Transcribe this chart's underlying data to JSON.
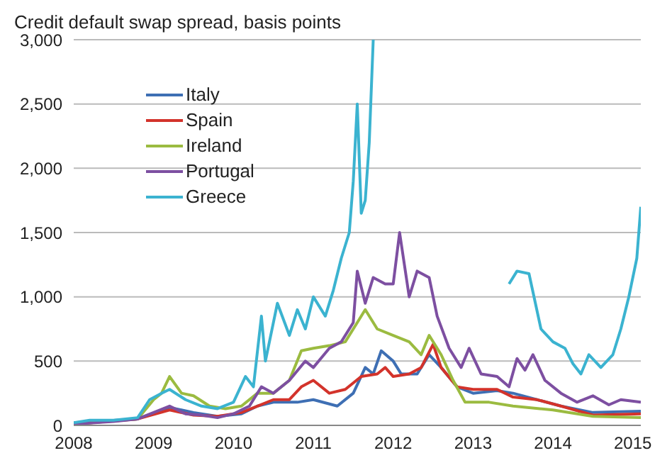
{
  "chart_data": {
    "type": "line",
    "title": "Credit default swap spread, basis points",
    "xlim": [
      2008,
      2015.1
    ],
    "xticks": [
      2008,
      2009,
      2010,
      2011,
      2012,
      2013,
      2014,
      2015
    ],
    "ylim": [
      0,
      3000
    ],
    "yticks": [
      {
        "value": 0,
        "label": "0"
      },
      {
        "value": 500,
        "label": "500"
      },
      {
        "value": 1000,
        "label": "1,000"
      },
      {
        "value": 1500,
        "label": "1,500"
      },
      {
        "value": 2000,
        "label": "2,000"
      },
      {
        "value": 2500,
        "label": "2,500"
      },
      {
        "value": 3000,
        "label": "3,000"
      }
    ],
    "grid": "y",
    "legend": "top left",
    "marker": "none",
    "line_style": "solid",
    "series": [
      {
        "name": "Italy",
        "color": "#3e6fb4",
        "x": [
          2008,
          2008.8,
          2009.2,
          2009.5,
          2009.8,
          2010.1,
          2010.3,
          2010.5,
          2010.8,
          2011.0,
          2011.3,
          2011.5,
          2011.65,
          2011.75,
          2011.85,
          2012.0,
          2012.1,
          2012.3,
          2012.45,
          2012.6,
          2012.8,
          2013.0,
          2013.3,
          2013.5,
          2013.8,
          2014.1,
          2014.5,
          2015.1
        ],
        "values": [
          20,
          50,
          140,
          100,
          70,
          90,
          150,
          180,
          180,
          200,
          150,
          250,
          450,
          400,
          580,
          500,
          400,
          400,
          550,
          450,
          300,
          250,
          270,
          250,
          200,
          150,
          100,
          110
        ]
      },
      {
        "name": "Spain",
        "color": "#d3332b",
        "x": [
          2008,
          2008.8,
          2009.2,
          2009.5,
          2009.8,
          2010.1,
          2010.3,
          2010.5,
          2010.7,
          2010.85,
          2011.0,
          2011.2,
          2011.4,
          2011.6,
          2011.8,
          2011.9,
          2012.0,
          2012.2,
          2012.35,
          2012.5,
          2012.6,
          2012.8,
          2013.0,
          2013.3,
          2013.5,
          2013.8,
          2014.1,
          2014.5,
          2015.1
        ],
        "values": [
          10,
          50,
          120,
          80,
          70,
          100,
          150,
          200,
          200,
          300,
          350,
          250,
          280,
          380,
          400,
          450,
          380,
          400,
          450,
          630,
          450,
          300,
          280,
          280,
          220,
          200,
          150,
          80,
          90
        ]
      },
      {
        "name": "Ireland",
        "color": "#9bbb40",
        "x": [
          2008,
          2008.8,
          2009.0,
          2009.1,
          2009.2,
          2009.35,
          2009.5,
          2009.7,
          2009.9,
          2010.1,
          2010.3,
          2010.5,
          2010.7,
          2010.85,
          2011.0,
          2011.2,
          2011.4,
          2011.55,
          2011.65,
          2011.8,
          2012.0,
          2012.2,
          2012.35,
          2012.45,
          2012.6,
          2012.75,
          2012.9,
          2013.2,
          2013.5,
          2014.0,
          2014.5,
          2015.1
        ],
        "values": [
          10,
          50,
          200,
          250,
          380,
          250,
          230,
          150,
          130,
          150,
          250,
          250,
          350,
          580,
          600,
          620,
          650,
          800,
          900,
          750,
          700,
          650,
          550,
          700,
          550,
          350,
          180,
          180,
          150,
          120,
          70,
          60
        ]
      },
      {
        "name": "Portugal",
        "color": "#7d4fa1",
        "x": [
          2008,
          2008.5,
          2008.8,
          2009.0,
          2009.2,
          2009.4,
          2009.6,
          2009.8,
          2010.0,
          2010.2,
          2010.35,
          2010.5,
          2010.7,
          2010.9,
          2011.0,
          2011.2,
          2011.35,
          2011.5,
          2011.55,
          2011.65,
          2011.75,
          2011.9,
          2012.0,
          2012.08,
          2012.2,
          2012.3,
          2012.45,
          2012.55,
          2012.7,
          2012.85,
          2012.95,
          2013.1,
          2013.3,
          2013.45,
          2013.55,
          2013.65,
          2013.75,
          2013.9,
          2014.1,
          2014.3,
          2014.5,
          2014.7,
          2014.85,
          2015.1
        ],
        "values": [
          10,
          30,
          50,
          100,
          150,
          90,
          80,
          60,
          90,
          150,
          300,
          250,
          350,
          500,
          450,
          600,
          650,
          800,
          1200,
          950,
          1150,
          1100,
          1100,
          1500,
          1000,
          1200,
          1150,
          850,
          600,
          450,
          600,
          400,
          380,
          300,
          520,
          430,
          550,
          350,
          250,
          180,
          230,
          160,
          200,
          180
        ]
      },
      {
        "name": "Greece",
        "color": "#3bb3d0",
        "x": [
          2008,
          2008.2,
          2008.5,
          2008.8,
          2008.95,
          2009.1,
          2009.2,
          2009.4,
          2009.6,
          2009.8,
          2010.0,
          2010.15,
          2010.25,
          2010.35,
          2010.4,
          2010.55,
          2010.7,
          2010.8,
          2010.9,
          2011.0,
          2011.15,
          2011.25,
          2011.35,
          2011.45,
          2011.5,
          2011.55,
          2011.6,
          2011.65,
          2011.7,
          2011.75,
          2011.8,
          2013.45,
          2013.55,
          2013.7,
          2013.85,
          2014.0,
          2014.15,
          2014.25,
          2014.35,
          2014.45,
          2014.6,
          2014.75,
          2014.85,
          2014.95,
          2015.05,
          2015.1
        ],
        "values": [
          20,
          40,
          40,
          60,
          200,
          250,
          280,
          200,
          150,
          130,
          180,
          380,
          300,
          850,
          500,
          950,
          700,
          900,
          750,
          1000,
          850,
          1050,
          1300,
          1500,
          1900,
          2500,
          1650,
          1750,
          2200,
          3000,
          null,
          1100,
          1200,
          1180,
          750,
          650,
          600,
          480,
          400,
          550,
          450,
          550,
          750,
          1000,
          1300,
          1700
        ]
      }
    ]
  }
}
